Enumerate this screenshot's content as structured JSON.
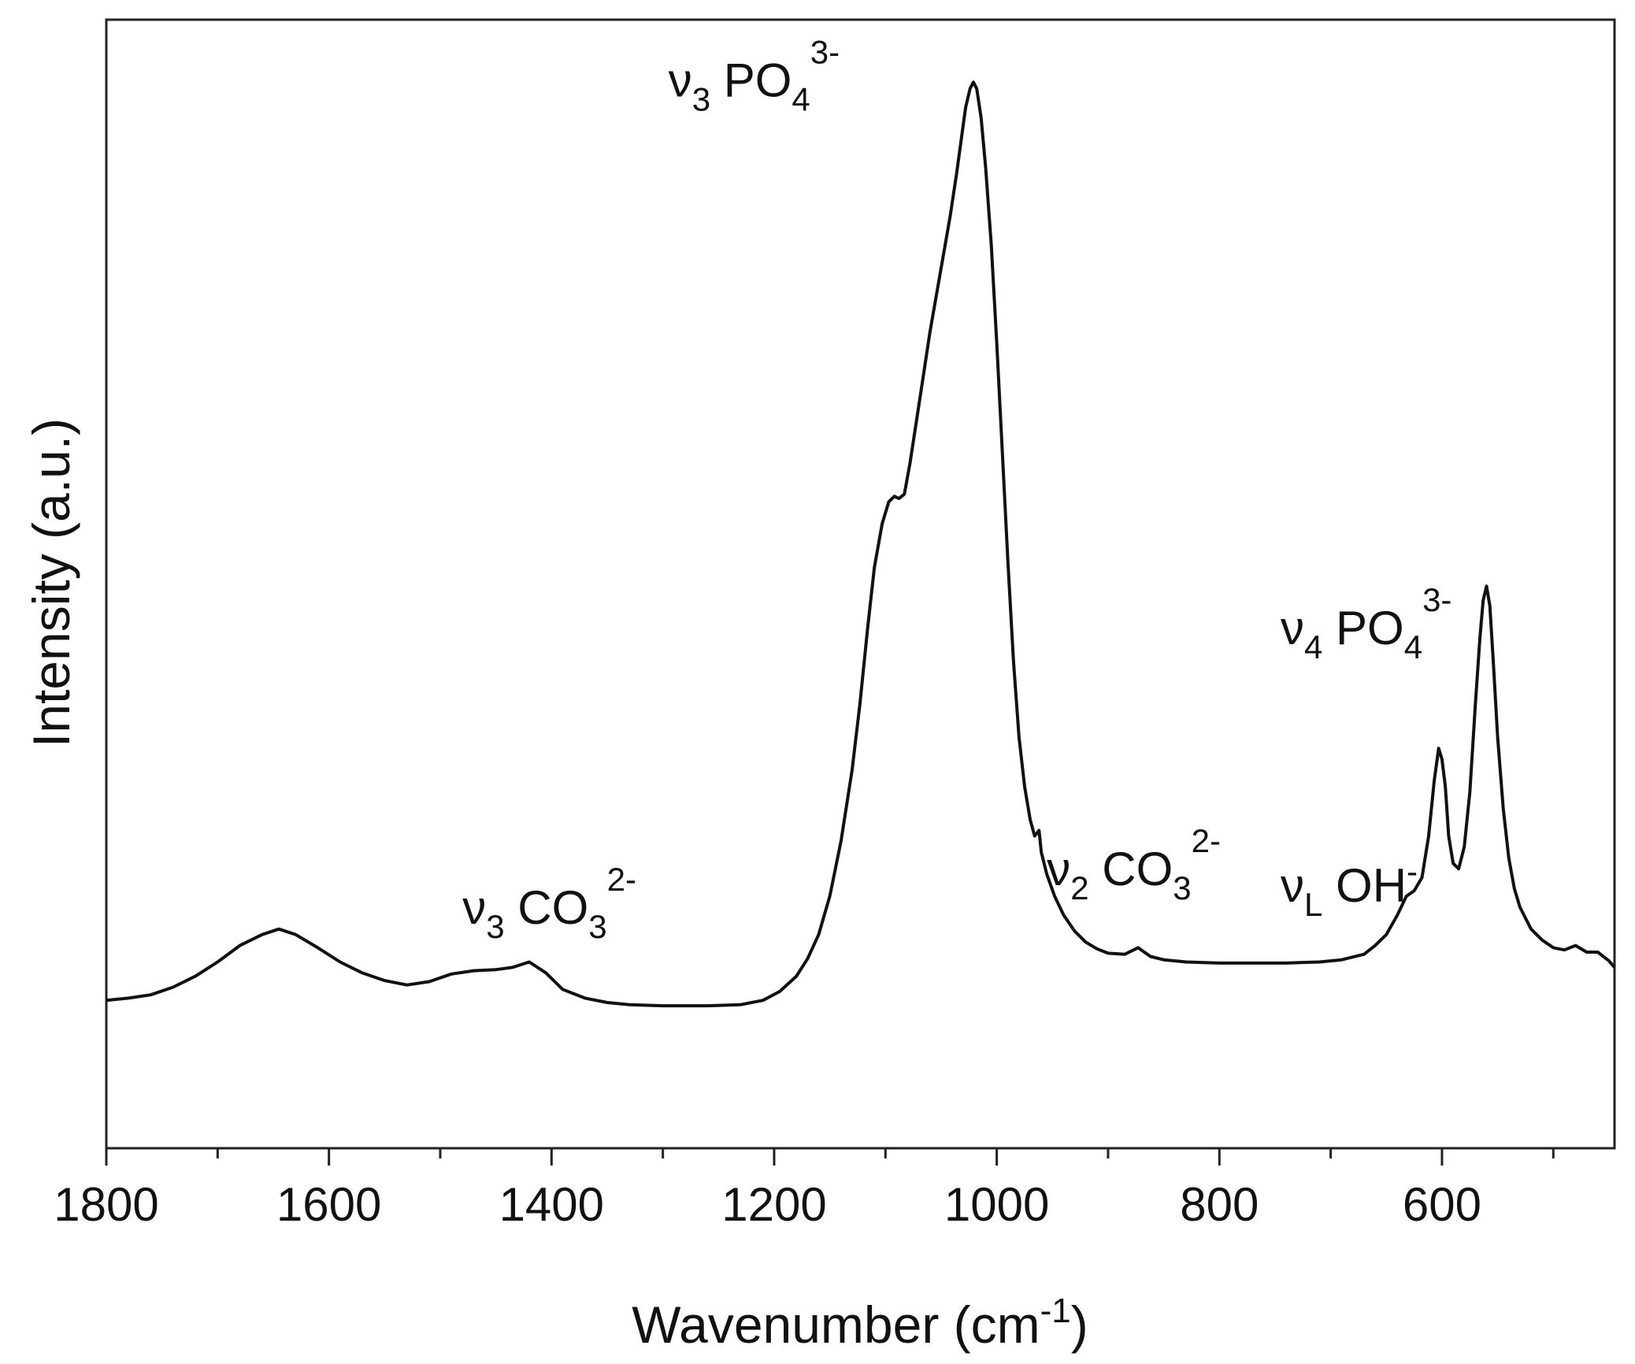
{
  "chart_data": {
    "type": "line",
    "title": "",
    "xlabel": {
      "main": "Wavenumber (cm",
      "sup": "-1",
      "close": ")"
    },
    "ylabel": "Intensity (a.u.)",
    "xlim": [
      1800,
      445
    ],
    "ylim": [
      -0.35,
      9.95
    ],
    "x_reversed": true,
    "grid": false,
    "x_ticks": [
      1800,
      1600,
      1400,
      1200,
      1000,
      800,
      600
    ],
    "x_tick_labels": [
      "1800",
      "1600",
      "1400",
      "1200",
      "1000",
      "800",
      "600"
    ],
    "x_minor_ticks": [
      1700,
      1500,
      1300,
      1100,
      900,
      700,
      500
    ],
    "series": [
      {
        "x": [
          1800,
          1780,
          1760,
          1740,
          1720,
          1700,
          1680,
          1660,
          1645,
          1630,
          1610,
          1590,
          1570,
          1550,
          1530,
          1510,
          1490,
          1470,
          1450,
          1435,
          1420,
          1405,
          1390,
          1370,
          1350,
          1330,
          1300,
          1260,
          1230,
          1210,
          1195,
          1180,
          1170,
          1160,
          1150,
          1140,
          1130,
          1123,
          1116,
          1110,
          1103,
          1097,
          1092,
          1088,
          1083,
          1078,
          1072,
          1066,
          1060,
          1054,
          1048,
          1042,
          1036,
          1032,
          1028,
          1024,
          1021,
          1018,
          1014,
          1010,
          1005,
          1000,
          995,
          990,
          985,
          980,
          975,
          970,
          966,
          962,
          960,
          955,
          948,
          940,
          930,
          920,
          910,
          900,
          885,
          873,
          862,
          850,
          830,
          800,
          770,
          740,
          710,
          690,
          670,
          660,
          650,
          640,
          632,
          625,
          618,
          612,
          607,
          603,
          600,
          597,
          594,
          590,
          585,
          580,
          575,
          570,
          566,
          563,
          560,
          557,
          554,
          550,
          545,
          540,
          535,
          530,
          520,
          510,
          500,
          490,
          480,
          470,
          460,
          450,
          445
        ],
        "y": [
          1.0,
          1.02,
          1.05,
          1.12,
          1.22,
          1.35,
          1.5,
          1.6,
          1.65,
          1.6,
          1.48,
          1.35,
          1.25,
          1.18,
          1.14,
          1.17,
          1.24,
          1.27,
          1.28,
          1.3,
          1.35,
          1.25,
          1.1,
          1.02,
          0.98,
          0.96,
          0.95,
          0.95,
          0.96,
          1.0,
          1.08,
          1.22,
          1.38,
          1.6,
          1.95,
          2.45,
          3.1,
          3.7,
          4.4,
          4.95,
          5.35,
          5.55,
          5.6,
          5.58,
          5.62,
          5.9,
          6.3,
          6.7,
          7.1,
          7.45,
          7.8,
          8.15,
          8.55,
          8.85,
          9.15,
          9.32,
          9.38,
          9.32,
          9.05,
          8.6,
          7.9,
          7.0,
          6.0,
          5.0,
          4.1,
          3.4,
          2.95,
          2.65,
          2.5,
          2.55,
          2.35,
          2.15,
          1.95,
          1.78,
          1.63,
          1.53,
          1.47,
          1.43,
          1.42,
          1.48,
          1.4,
          1.37,
          1.35,
          1.34,
          1.34,
          1.34,
          1.35,
          1.37,
          1.42,
          1.5,
          1.6,
          1.78,
          1.95,
          2.0,
          2.12,
          2.5,
          3.0,
          3.3,
          3.2,
          2.95,
          2.5,
          2.25,
          2.2,
          2.4,
          2.9,
          3.7,
          4.3,
          4.65,
          4.78,
          4.6,
          4.1,
          3.4,
          2.75,
          2.3,
          2.02,
          1.85,
          1.65,
          1.55,
          1.48,
          1.46,
          1.5,
          1.44,
          1.44,
          1.36,
          1.3
        ]
      }
    ],
    "annotations": [
      {
        "base": "ν",
        "sub": "3",
        "species": "CO",
        "species_sub": "3",
        "sup": "2-",
        "x": 1480,
        "y": 1.7
      },
      {
        "base": "ν",
        "sub": "3",
        "species": "PO",
        "species_sub": "4",
        "sup": "3-",
        "x": 1295,
        "y": 9.25
      },
      {
        "base": "ν",
        "sub": "2",
        "species": "CO",
        "species_sub": "3",
        "sup": "2-",
        "x": 955,
        "y": 2.05
      },
      {
        "base": "ν",
        "sub": "L",
        "species": "OH",
        "species_sub": "",
        "sup": "-",
        "x": 745,
        "y": 1.9
      },
      {
        "base": "ν",
        "sub": "4",
        "species": "PO",
        "species_sub": "4",
        "sup": "3-",
        "x": 745,
        "y": 4.25
      }
    ]
  }
}
